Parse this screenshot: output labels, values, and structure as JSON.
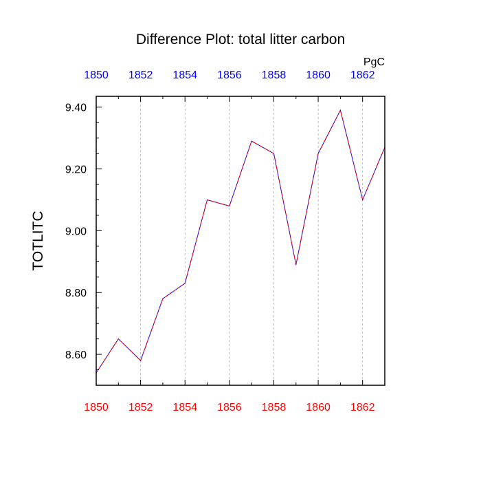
{
  "chart_data": {
    "type": "line",
    "title": "Difference Plot: total litter carbon",
    "units_label": "PgC",
    "ylabel": "TOTLITC",
    "xlabel": "",
    "xlim": [
      1850,
      1863
    ],
    "ylim": [
      8.5,
      9.435
    ],
    "x_ticks": [
      1850,
      1852,
      1854,
      1856,
      1858,
      1860,
      1862
    ],
    "x_tick_labels": [
      "1850",
      "1852",
      "1854",
      "1856",
      "1858",
      "1860",
      "1862"
    ],
    "top_tick_labels": [
      "1850",
      "1852",
      "1854",
      "1856",
      "1858",
      "1860",
      "1862"
    ],
    "y_ticks": [
      8.6,
      8.8,
      9.0,
      9.2,
      9.4
    ],
    "y_tick_labels": [
      "8.60",
      "8.80",
      "9.00",
      "9.20",
      "9.40"
    ],
    "grid": "vertical-dashed",
    "series": [
      {
        "name": "TOTLITC",
        "x": [
          1850,
          1851,
          1852,
          1853,
          1854,
          1855,
          1856,
          1857,
          1858,
          1859,
          1860,
          1861,
          1862,
          1863
        ],
        "values": [
          8.54,
          8.65,
          8.58,
          8.78,
          8.83,
          9.1,
          9.08,
          9.29,
          9.25,
          8.89,
          9.25,
          9.39,
          9.1,
          9.27
        ]
      }
    ],
    "colors": {
      "bottom_ticks": "#ff0000",
      "top_ticks": "#0000ff",
      "line_primary": "#0000ff",
      "line_secondary": "#ff0000",
      "axis": "#000000",
      "grid": "#aaaaaa"
    }
  }
}
